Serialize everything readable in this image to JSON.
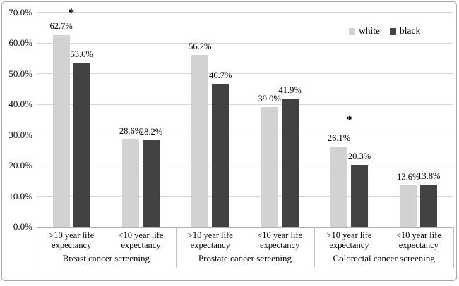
{
  "figure": {
    "background": "#ffffff",
    "border_color": "#a9a9a9"
  },
  "colors": {
    "gridline": "#d6d6d6",
    "axis_line": "#b3b3b3",
    "divider": "#c3c3c3",
    "text": "#000000"
  },
  "chart_data": {
    "type": "bar",
    "title": "",
    "xlabel": "",
    "ylabel": "",
    "ylim": [
      0,
      70
    ],
    "ytick_step": 10,
    "ytick_labels": [
      "0.0%",
      "10.0%",
      "20.0%",
      "30.0%",
      "40.0%",
      "50.0%",
      "60.0%",
      "70.0%"
    ],
    "grid": true,
    "legend_position": "top-right",
    "groups": [
      {
        "label": "Breast cancer screening",
        "categories": [
          ">10 year life expectancy",
          "<10 year life expectancy"
        ]
      },
      {
        "label": "Prostate cancer screening",
        "categories": [
          ">10 year life expectancy",
          "<10 year life expectancy"
        ]
      },
      {
        "label": "Colorectal cancer screening",
        "categories": [
          ">10 year life expectancy",
          "<10 year life expectancy"
        ]
      }
    ],
    "series": [
      {
        "name": "white",
        "color": "#d2d2d2",
        "values": [
          62.7,
          28.6,
          56.2,
          39.0,
          26.1,
          13.6
        ]
      },
      {
        "name": "black",
        "color": "#424242",
        "values": [
          53.6,
          28.2,
          46.7,
          41.9,
          20.3,
          13.8
        ]
      }
    ],
    "value_labels": [
      [
        "62.7%",
        "28.6%",
        "56.2%",
        "39.0%",
        "26.1%",
        "13.6%"
      ],
      [
        "53.6%",
        "28.2%",
        "46.7%",
        "41.9%",
        "20.3%",
        "13.8%"
      ]
    ],
    "annotations": [
      {
        "text": "*",
        "slot": 0,
        "y_value": 70.0
      },
      {
        "text": "*",
        "slot": 4,
        "y_value": 35.0
      }
    ]
  }
}
